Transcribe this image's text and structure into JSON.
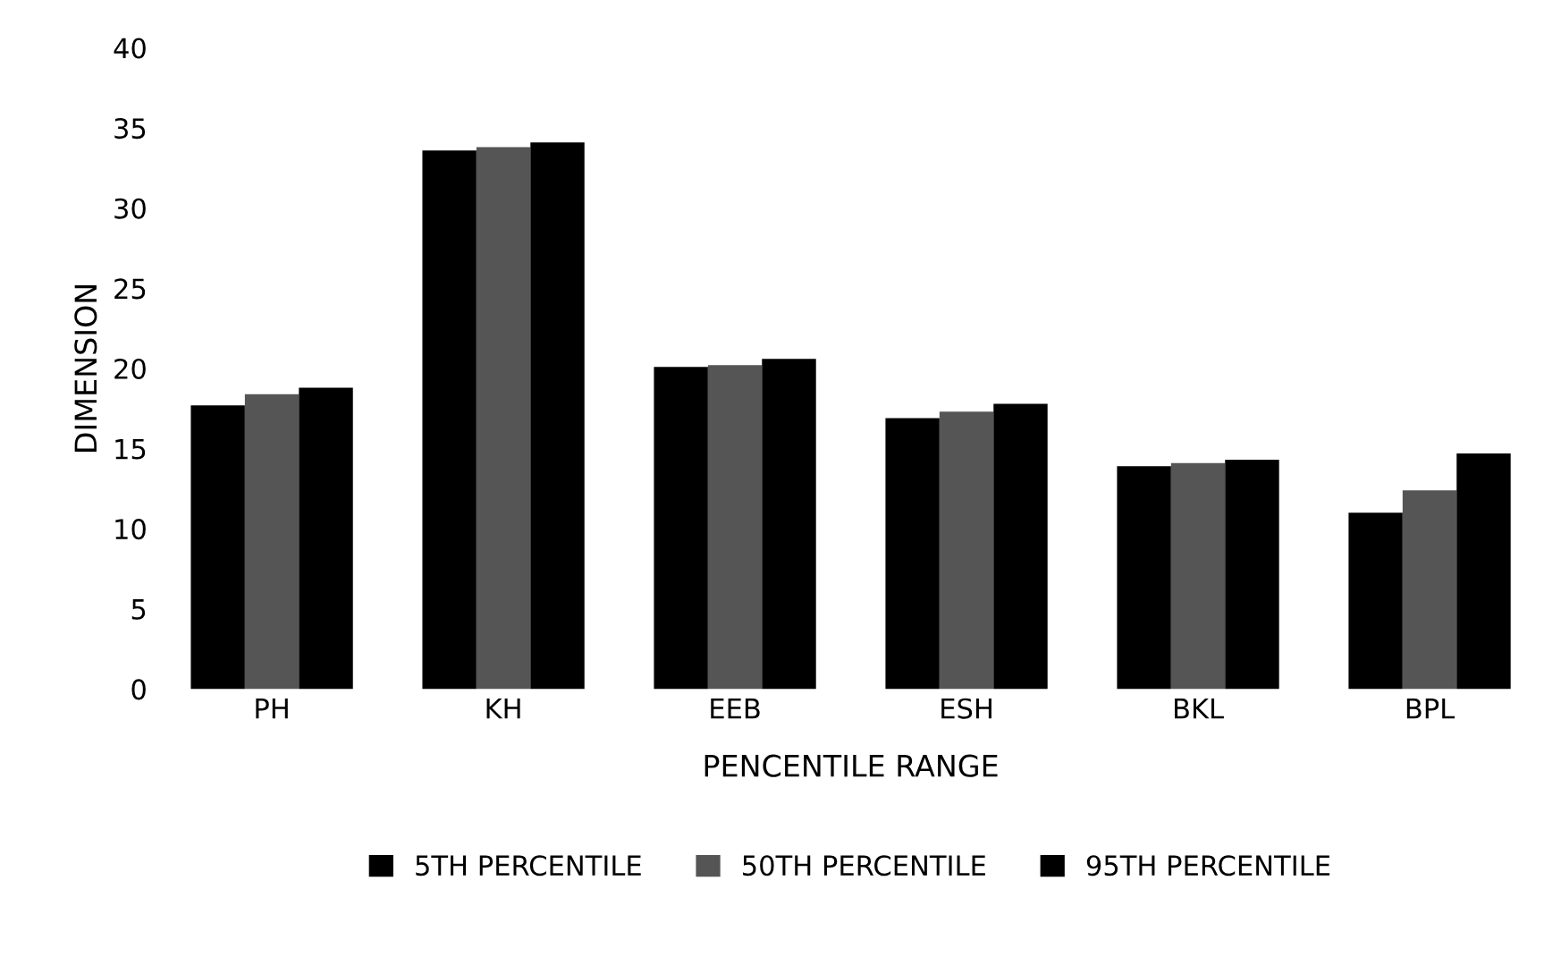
{
  "chart_data": {
    "type": "bar",
    "xlabel": "PENCENTILE RANGE",
    "ylabel": "DIMENSION",
    "categories": [
      "PH",
      "KH",
      "EEB",
      "ESH",
      "BKL",
      "BPL"
    ],
    "series": [
      {
        "name": "5TH PERCENTILE",
        "color": "#000000",
        "values": [
          17.7,
          33.6,
          20.1,
          16.9,
          13.9,
          11.0
        ]
      },
      {
        "name": "50TH PERCENTILE",
        "color": "#555555",
        "values": [
          18.4,
          33.8,
          20.2,
          17.3,
          14.1,
          12.4
        ]
      },
      {
        "name": "95TH PERCENTILE",
        "color": "#000000",
        "values": [
          18.8,
          34.1,
          20.6,
          17.8,
          14.3,
          14.7
        ]
      }
    ],
    "ylim": [
      0,
      40
    ],
    "yticks": [
      0,
      5,
      10,
      15,
      20,
      25,
      30,
      35,
      40
    ],
    "grid": false,
    "legend": "bottom"
  }
}
